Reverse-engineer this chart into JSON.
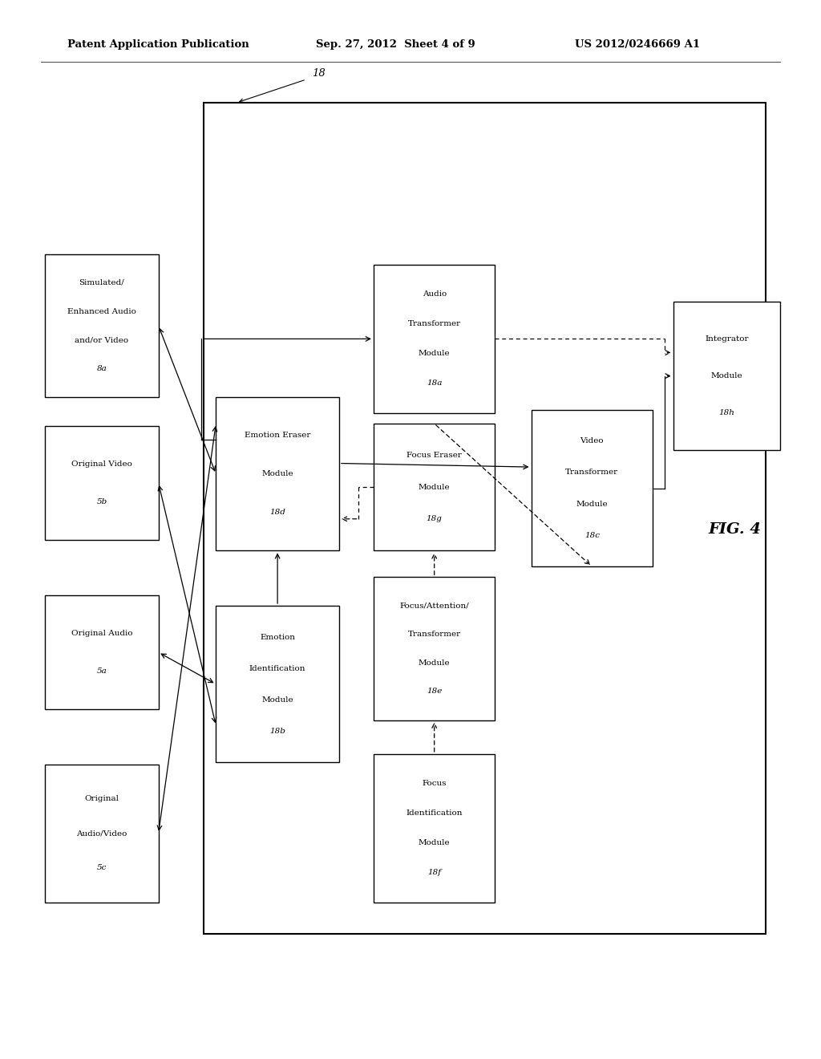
{
  "bg": "#ffffff",
  "header_left": "Patent Application Publication",
  "header_mid": "Sep. 27, 2012  Sheet 4 of 9",
  "header_right": "US 2012/0246669 A1",
  "fig_label": "FIG. 4",
  "outer_label": "18",
  "outer": [
    0.248,
    0.118,
    0.685,
    0.785
  ],
  "boxes": {
    "orig_av": [
      0.055,
      0.148,
      0.138,
      0.13
    ],
    "orig_audio": [
      0.055,
      0.33,
      0.138,
      0.108
    ],
    "orig_video": [
      0.055,
      0.49,
      0.138,
      0.108
    ],
    "sim_av": [
      0.055,
      0.625,
      0.138,
      0.135
    ],
    "emotion_id": [
      0.263,
      0.28,
      0.15,
      0.148
    ],
    "emotion_er": [
      0.263,
      0.48,
      0.15,
      0.145
    ],
    "audio_tr": [
      0.455,
      0.61,
      0.148,
      0.14
    ],
    "focus_id": [
      0.455,
      0.148,
      0.148,
      0.14
    ],
    "focus_attn": [
      0.455,
      0.32,
      0.148,
      0.135
    ],
    "focus_er": [
      0.455,
      0.48,
      0.148,
      0.12
    ],
    "video_tr": [
      0.647,
      0.465,
      0.148,
      0.148
    ],
    "integrator": [
      0.82,
      0.575,
      0.13,
      0.14
    ]
  },
  "box_labels": {
    "orig_av": [
      "Original",
      "Audio/Video",
      "5c"
    ],
    "orig_audio": [
      "Original Audio",
      "5a"
    ],
    "orig_video": [
      "Original Video",
      "5b"
    ],
    "sim_av": [
      "Simulated/",
      "Enhanced Audio",
      "and/or Video",
      "8a"
    ],
    "emotion_id": [
      "Emotion",
      "Identification",
      "Module",
      "18b"
    ],
    "emotion_er": [
      "Emotion Eraser",
      "Module",
      "18d"
    ],
    "audio_tr": [
      "Audio",
      "Transformer",
      "Module",
      "18a"
    ],
    "focus_id": [
      "Focus",
      "Identification",
      "Module",
      "18f"
    ],
    "focus_attn": [
      "Focus/Attention/",
      "Transformer",
      "Module",
      "18e"
    ],
    "focus_er": [
      "Focus Eraser",
      "Module",
      "18g"
    ],
    "video_tr": [
      "Video",
      "Transformer",
      "Module",
      "18c"
    ],
    "integrator": [
      "Integrator",
      "Module",
      "18h"
    ]
  }
}
